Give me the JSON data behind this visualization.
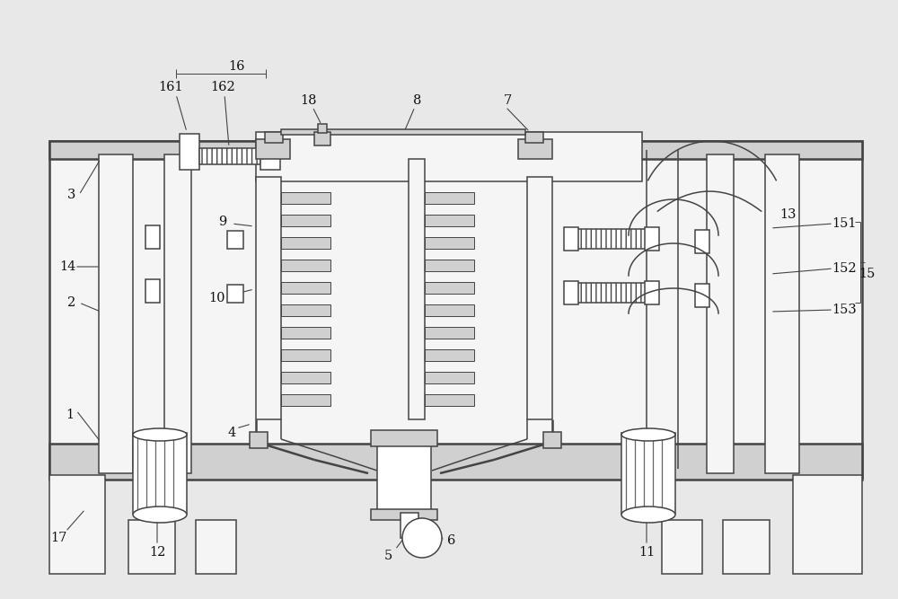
{
  "bg_color": "#e8e8e8",
  "lc": "#444444",
  "lw_thin": 0.7,
  "lw_med": 1.1,
  "lw_thick": 1.8,
  "fc_white": "#ffffff",
  "fc_light": "#f5f5f5",
  "fc_gray": "#d0d0d0",
  "fc_dark": "#aaaaaa",
  "label_fs": 10.5,
  "label_color": "#111111"
}
